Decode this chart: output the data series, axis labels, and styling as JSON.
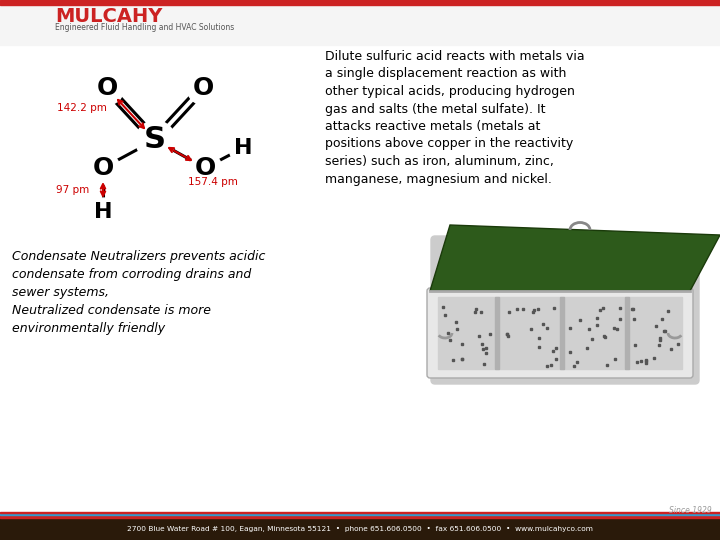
{
  "bg_color": "#ffffff",
  "header_bg_color": "#f5f5f5",
  "header_red_bar": "#cc2222",
  "header_blue_bar": "#3399cc",
  "footer_bg_color": "#2a1a0a",
  "footer_text": "2700 Blue Water Road # 100, Eagan, Minnesota 55121  •  phone 651.606.0500  •  fax 651.606.0500  •  www.mulcahyco.com",
  "footer_since": "Since 1929",
  "company_name": "MULCAHY",
  "company_tagline": "Engineered Fluid Handling and HVAC Solutions",
  "right_text": "Dilute sulfuric acid reacts with metals via\na single displacement reaction as with\nother typical acids, producing hydrogen\ngas and salts (the metal sulfate). It\nattacks reactive metals (metals at\npositions above copper in the reactivity\nseries) such as iron, aluminum, zinc,\nmanganese, magnesium and nickel.",
  "bottom_left_text": "Condensate Neutralizers prevents acidic\ncondensate from corroding drains and\nsewer systems,\nNeutralized condensate is more\nenvironmentally friendly",
  "molecule_label_142": "142.2 pm",
  "molecule_label_97": "97 pm",
  "molecule_label_157": "157.4 pm",
  "text_color": "#000000",
  "red_color": "#cc0000"
}
